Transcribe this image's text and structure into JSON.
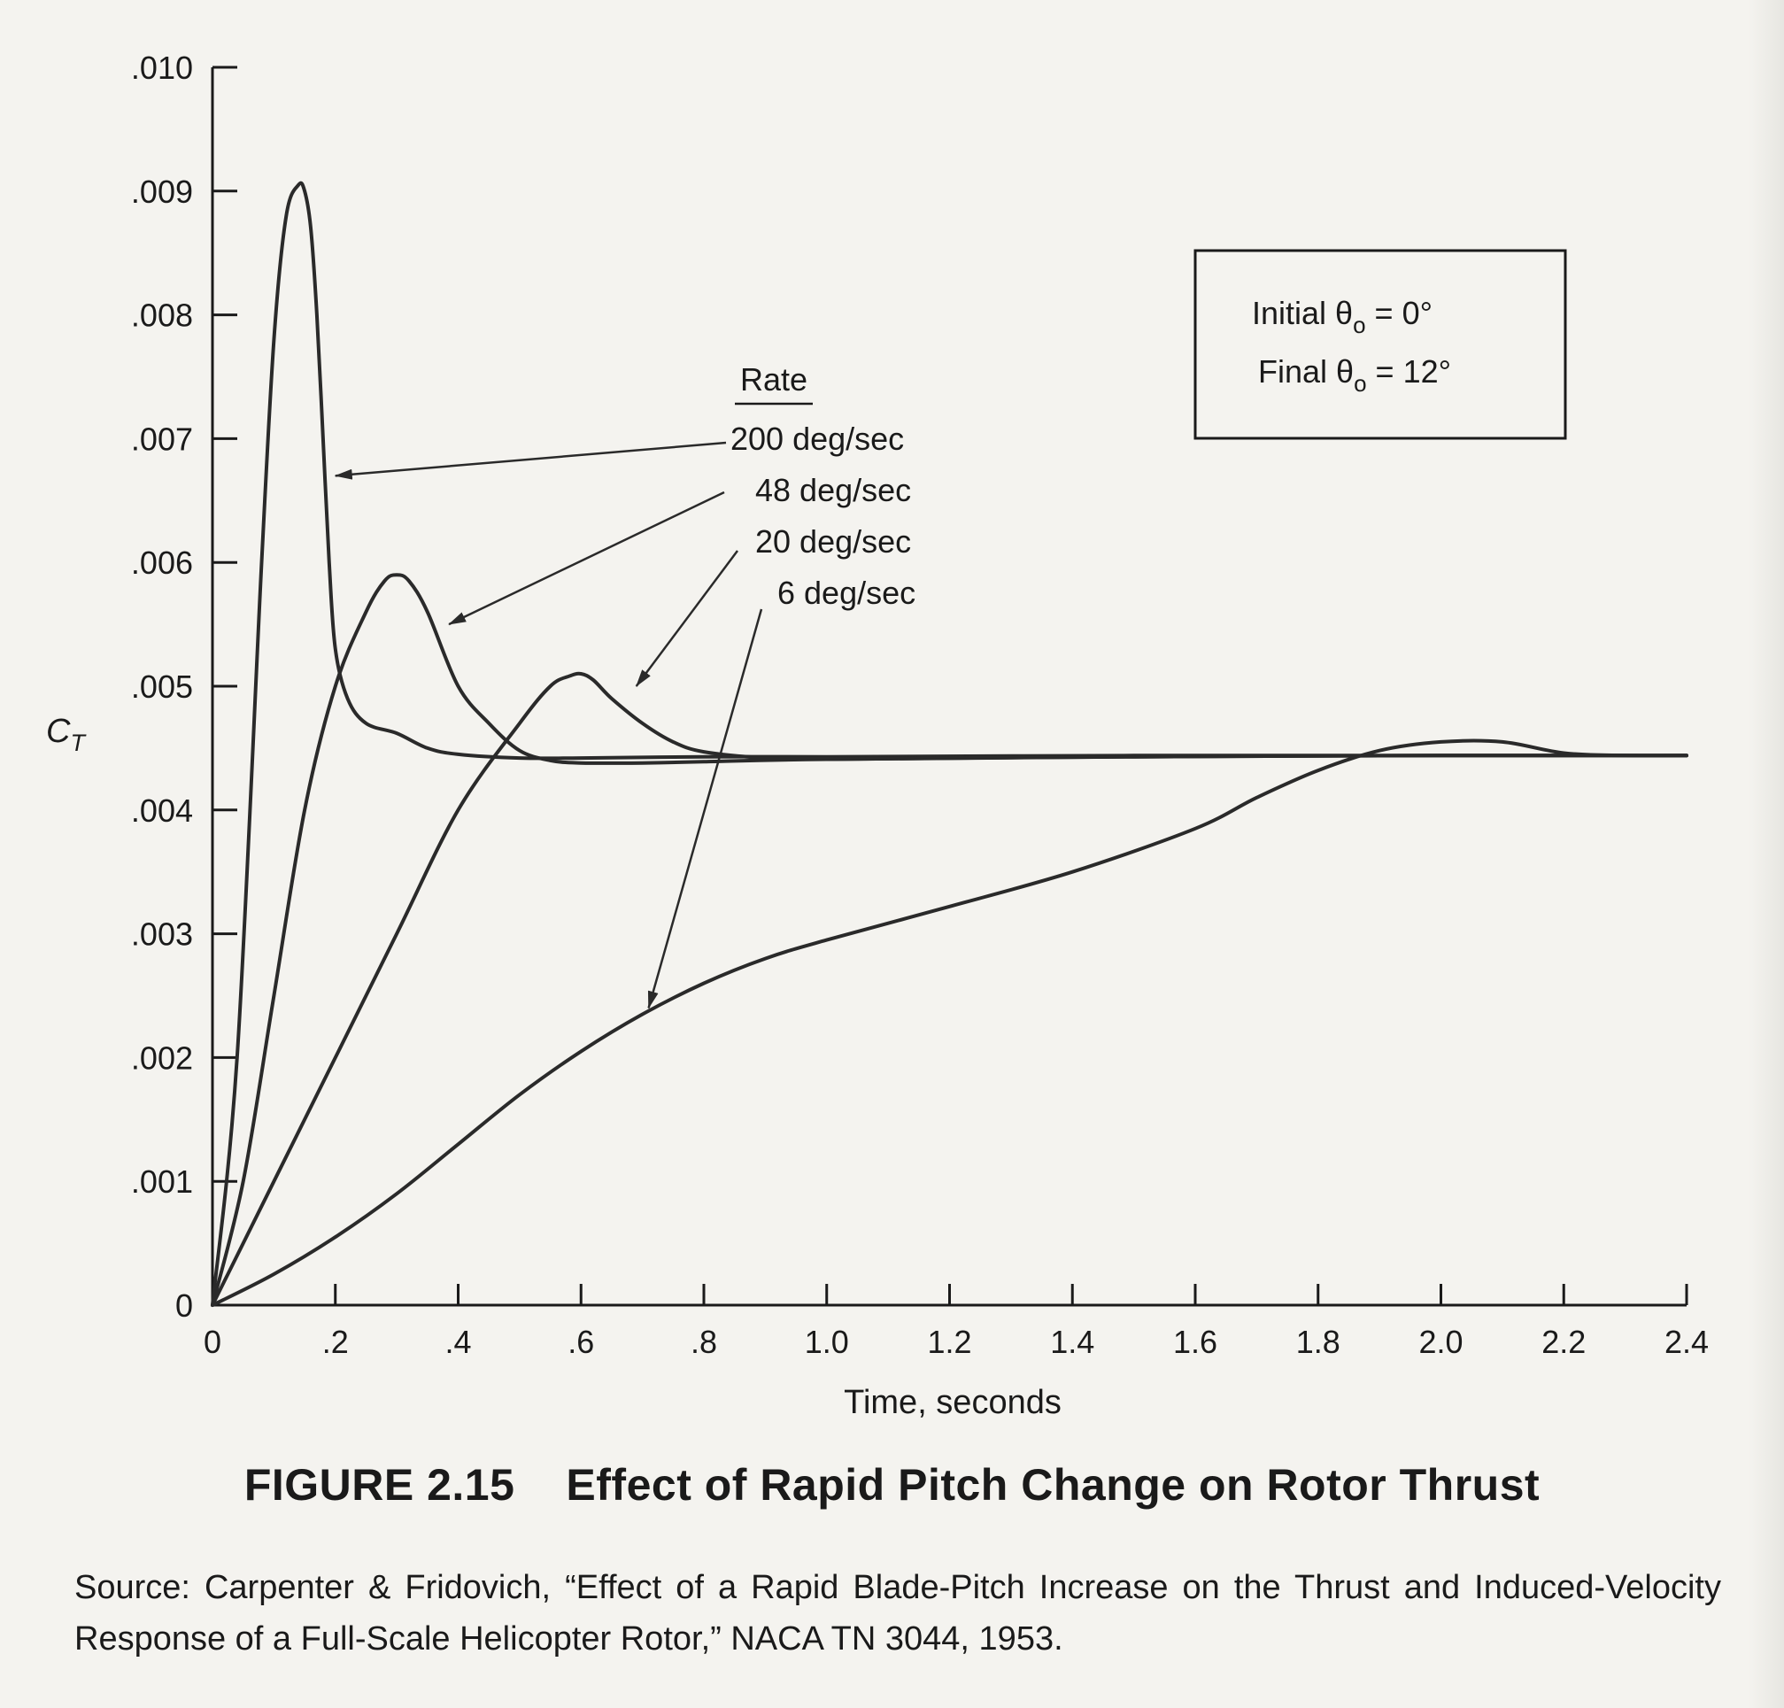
{
  "chart_data": {
    "type": "line",
    "xlabel": "Time, seconds",
    "ylabel": "C_T",
    "xlim": [
      0,
      2.4
    ],
    "ylim": [
      0,
      0.01
    ],
    "x_ticks": [
      0,
      0.2,
      0.4,
      0.6,
      0.8,
      1.0,
      1.2,
      1.4,
      1.6,
      1.8,
      2.0,
      2.2,
      2.4
    ],
    "x_tick_labels": [
      "0",
      ".2",
      ".4",
      ".6",
      ".8",
      "1.0",
      "1.2",
      "1.4",
      "1.6",
      "1.8",
      "2.0",
      "2.2",
      "2.4"
    ],
    "y_ticks": [
      0,
      0.001,
      0.002,
      0.003,
      0.004,
      0.005,
      0.006,
      0.007,
      0.008,
      0.009,
      0.01
    ],
    "y_tick_labels": [
      "0",
      ".001",
      ".002",
      ".003",
      ".004",
      ".005",
      ".006",
      ".007",
      ".008",
      ".009",
      ".010"
    ],
    "grid": false,
    "legend_title": "Rate",
    "series": [
      {
        "name": "200 deg/sec",
        "x": [
          0,
          0.04,
          0.08,
          0.1,
          0.12,
          0.14,
          0.15,
          0.16,
          0.17,
          0.18,
          0.19,
          0.2,
          0.22,
          0.25,
          0.3,
          0.35,
          0.4,
          0.5,
          0.6,
          0.8,
          1.0,
          1.5,
          2.0,
          2.4
        ],
        "y": [
          0,
          0.002,
          0.006,
          0.0078,
          0.0088,
          0.00905,
          0.009,
          0.0087,
          0.008,
          0.007,
          0.006,
          0.0053,
          0.0049,
          0.0047,
          0.00462,
          0.0045,
          0.00445,
          0.00442,
          0.00442,
          0.00443,
          0.00443,
          0.00444,
          0.00444,
          0.00444
        ]
      },
      {
        "name": "48 deg/sec",
        "x": [
          0,
          0.05,
          0.1,
          0.15,
          0.2,
          0.25,
          0.28,
          0.3,
          0.32,
          0.35,
          0.4,
          0.45,
          0.5,
          0.55,
          0.6,
          0.7,
          0.8,
          1.0,
          1.5,
          2.0,
          2.4
        ],
        "y": [
          0,
          0.001,
          0.0025,
          0.004,
          0.005,
          0.0056,
          0.00585,
          0.0059,
          0.00585,
          0.0056,
          0.005,
          0.0047,
          0.00448,
          0.0044,
          0.00438,
          0.00438,
          0.00439,
          0.00441,
          0.00443,
          0.00444,
          0.00444
        ]
      },
      {
        "name": "20 deg/sec",
        "x": [
          0,
          0.1,
          0.2,
          0.3,
          0.4,
          0.5,
          0.55,
          0.58,
          0.6,
          0.62,
          0.65,
          0.7,
          0.75,
          0.8,
          0.9,
          1.0,
          1.5,
          2.0,
          2.4
        ],
        "y": [
          0,
          0.001,
          0.002,
          0.003,
          0.004,
          0.0047,
          0.005,
          0.00508,
          0.0051,
          0.00505,
          0.0049,
          0.0047,
          0.00455,
          0.00447,
          0.00442,
          0.00441,
          0.00443,
          0.00444,
          0.00444
        ]
      },
      {
        "name": "6 deg/sec",
        "x": [
          0,
          0.1,
          0.2,
          0.3,
          0.4,
          0.5,
          0.6,
          0.7,
          0.8,
          0.9,
          1.0,
          1.2,
          1.4,
          1.6,
          1.7,
          1.8,
          1.9,
          2.0,
          2.1,
          2.2,
          2.3,
          2.4
        ],
        "y": [
          0,
          0.00025,
          0.00055,
          0.0009,
          0.0013,
          0.0017,
          0.00205,
          0.00235,
          0.0026,
          0.0028,
          0.00295,
          0.00322,
          0.0035,
          0.00385,
          0.0041,
          0.00432,
          0.00448,
          0.00455,
          0.00455,
          0.00446,
          0.00444,
          0.00444
        ]
      }
    ],
    "annotation": {
      "lines": [
        "Initial θ",
        "Final θ"
      ],
      "subscript": "o",
      "values": [
        "0°",
        "12°"
      ]
    }
  },
  "caption": {
    "figure_number": "FIGURE 2.15",
    "title": "Effect of Rapid Pitch Change on Rotor Thrust"
  },
  "source_text": "Source: Carpenter & Fridovich, “Effect of a Rapid Blade-Pitch Increase on the Thrust and Induced-Velocity Response of a Full-Scale Helicopter Rotor,” NACA TN 3044, 1953."
}
